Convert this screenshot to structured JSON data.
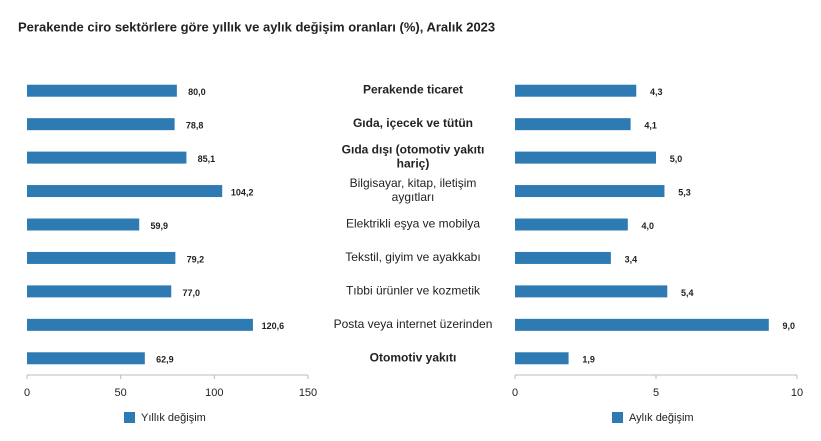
{
  "chart_data": {
    "type": "bar",
    "orientation": "horizontal",
    "title": "Perakende ciro sektörlere göre yıllık ve aylık değişim oranları (%), Aralık 2023",
    "categories": [
      "Perakende ticaret",
      "Gıda, içecek ve tütün",
      "Gıda dışı (otomotiv yakıtı\nhariç)",
      "Bilgisayar, kitap, iletişim\naygıtları",
      "Elektrikli eşya ve mobilya",
      "Tekstil, giyim ve ayakkabı",
      "Tıbbi ürünler ve kozmetik",
      "Posta veya internet üzerinden",
      "Otomotiv yakıtı"
    ],
    "series": [
      {
        "name": "Yıllık değişim",
        "color": "#2e7bb4",
        "values": [
          80.0,
          78.8,
          85.1,
          104.2,
          59.9,
          79.2,
          77.0,
          120.6,
          62.9
        ],
        "value_labels": [
          "80,0",
          "78,8",
          "85,1",
          "104,2",
          "59,9",
          "79,2",
          "77,0",
          "120,6",
          "62,9"
        ],
        "xlim": [
          0,
          150
        ],
        "xticks": [
          0,
          50,
          100,
          150
        ]
      },
      {
        "name": "Aylık değişim",
        "color": "#2e7bb4",
        "values": [
          4.3,
          4.1,
          5.0,
          5.3,
          4.0,
          3.4,
          5.4,
          9.0,
          1.9
        ],
        "value_labels": [
          "4,3",
          "4,1",
          "5,0",
          "5,3",
          "4,0",
          "3,4",
          "5,4",
          "9,0",
          "1,9"
        ],
        "xlim": [
          0,
          10
        ],
        "xticks": [
          0,
          5,
          10
        ]
      }
    ]
  }
}
